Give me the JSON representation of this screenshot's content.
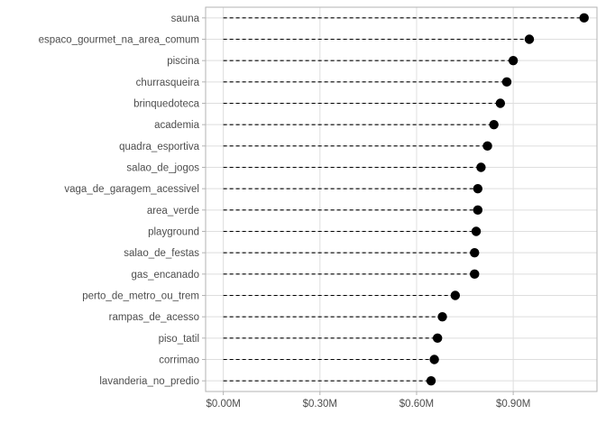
{
  "chart_data": {
    "type": "dot",
    "style": "lollipop-dashed",
    "orientation": "horizontal",
    "categories": [
      "sauna",
      "espaco_gourmet_na_area_comum",
      "piscina",
      "churrasqueira",
      "brinquedoteca",
      "academia",
      "quadra_esportiva",
      "salao_de_jogos",
      "vaga_de_garagem_acessivel",
      "area_verde",
      "playground",
      "salao_de_festas",
      "gas_encanado",
      "perto_de_metro_ou_trem",
      "rampas_de_acesso",
      "piso_tatil",
      "corrimao",
      "lavanderia_no_predio"
    ],
    "values": [
      1.12,
      0.95,
      0.9,
      0.88,
      0.86,
      0.84,
      0.82,
      0.8,
      0.79,
      0.79,
      0.785,
      0.78,
      0.78,
      0.72,
      0.68,
      0.665,
      0.655,
      0.645
    ],
    "value_unit": "M",
    "xlim": [
      -0.055,
      1.16
    ],
    "x_ticks": [
      0,
      0.3,
      0.6,
      0.9
    ],
    "x_tick_labels": [
      "$0.00M",
      "$0.30M",
      "$0.60M",
      "$0.90M"
    ],
    "title": "",
    "xlabel": "",
    "ylabel": "",
    "grid": true,
    "legend": "none",
    "colors": {
      "background": "#ffffff",
      "panel_border": "#b3b3b3",
      "grid": "#dedede",
      "point": "#000000",
      "segment": "#000000",
      "axis_text": "#4d4d4d"
    }
  }
}
